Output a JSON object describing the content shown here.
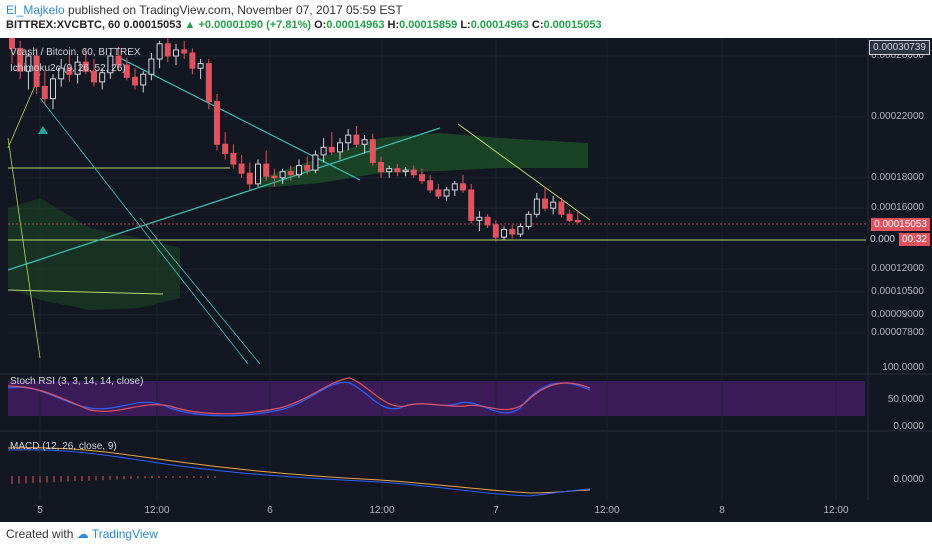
{
  "header": {
    "user": "El_Majkelo",
    "published": "published on TradingView.com, November 07, 2017 05:59 EST",
    "symbol": "BITTREX:XVCBTC, 60",
    "last": "0.00015053",
    "change": "▲ +0.00001090 (+7.81%)",
    "o_label": "O:",
    "o": "0.00014963",
    "h_label": "H:",
    "h": "0.00015859",
    "l_label": "L:",
    "l": "0.00014963",
    "c_label": "C:",
    "c": "0.00015053"
  },
  "footer": {
    "created": "Created with",
    "brand": "TradingView"
  },
  "chart": {
    "title": "Vcash / Bitcoin, 60, BITTREX",
    "indicator": "Ichimoku2c (9, 26, 52, 26)",
    "top_price": "0.00030739",
    "last_price": "0.00015053",
    "countdown_price": "0.000",
    "countdown": "00:32",
    "rsi_label": "Stoch RSI (3, 3, 14, 14, close)",
    "macd_label": "MACD (12, 26, close, 9)",
    "colors": {
      "bg": "#131722",
      "up": "#d1d4dc",
      "down": "#e0535e",
      "cloud": "#1f5a2a",
      "stoch_k": "#2962ff",
      "stoch_d": "#e0535e",
      "rsi_band": "#4a1f6b"
    }
  },
  "chart_data": {
    "type": "candlestick",
    "title": "Vcash / Bitcoin, 60, BITTREX",
    "y_ticks": [
      "0.00026000",
      "0.00022000",
      "0.00018000",
      "0.00016000",
      "0.00012000",
      "0.00010500",
      "0.00009000",
      "0.00007800"
    ],
    "y_tick_values": [
      0.00026,
      0.00022,
      0.00018,
      0.00016,
      0.00012,
      0.000105,
      9e-05,
      7.8e-05
    ],
    "x_ticks": [
      "5",
      "12:00",
      "6",
      "12:00",
      "7",
      "12:00",
      "8",
      "12:00"
    ],
    "rsi_ticks": [
      "100.0000",
      "50.0000",
      "0.0000"
    ],
    "macd_ticks": [
      "0.0000"
    ],
    "candles": [
      {
        "o": 0.000275,
        "h": 0.000285,
        "l": 0.000255,
        "c": 0.000265
      },
      {
        "o": 0.000265,
        "h": 0.00027,
        "l": 0.000245,
        "c": 0.00025
      },
      {
        "o": 0.00025,
        "h": 0.000262,
        "l": 0.000238,
        "c": 0.00026
      },
      {
        "o": 0.00026,
        "h": 0.000265,
        "l": 0.000235,
        "c": 0.00024
      },
      {
        "o": 0.00024,
        "h": 0.00025,
        "l": 0.000228,
        "c": 0.000232
      },
      {
        "o": 0.000232,
        "h": 0.000248,
        "l": 0.000225,
        "c": 0.000245
      },
      {
        "o": 0.000245,
        "h": 0.000258,
        "l": 0.00024,
        "c": 0.000252
      },
      {
        "o": 0.000252,
        "h": 0.000262,
        "l": 0.000243,
        "c": 0.000248
      },
      {
        "o": 0.000248,
        "h": 0.00026,
        "l": 0.000242,
        "c": 0.000256
      },
      {
        "o": 0.000256,
        "h": 0.000265,
        "l": 0.000248,
        "c": 0.00025
      },
      {
        "o": 0.00025,
        "h": 0.000258,
        "l": 0.00024,
        "c": 0.000243
      },
      {
        "o": 0.000243,
        "h": 0.000252,
        "l": 0.000238,
        "c": 0.000249
      },
      {
        "o": 0.000249,
        "h": 0.000262,
        "l": 0.000245,
        "c": 0.00026
      },
      {
        "o": 0.00026,
        "h": 0.000266,
        "l": 0.00025,
        "c": 0.000254
      },
      {
        "o": 0.000254,
        "h": 0.000259,
        "l": 0.000244,
        "c": 0.000246
      },
      {
        "o": 0.000246,
        "h": 0.000252,
        "l": 0.000238,
        "c": 0.000241
      },
      {
        "o": 0.000241,
        "h": 0.00025,
        "l": 0.000236,
        "c": 0.000248
      },
      {
        "o": 0.000248,
        "h": 0.000262,
        "l": 0.000244,
        "c": 0.000258
      },
      {
        "o": 0.000258,
        "h": 0.00027,
        "l": 0.000252,
        "c": 0.000268
      },
      {
        "o": 0.000268,
        "h": 0.000272,
        "l": 0.000256,
        "c": 0.00026
      },
      {
        "o": 0.00026,
        "h": 0.000268,
        "l": 0.000254,
        "c": 0.000264
      },
      {
        "o": 0.000264,
        "h": 0.00027,
        "l": 0.000258,
        "c": 0.000262
      },
      {
        "o": 0.000262,
        "h": 0.000265,
        "l": 0.000248,
        "c": 0.000252
      },
      {
        "o": 0.000252,
        "h": 0.000258,
        "l": 0.000245,
        "c": 0.000255
      },
      {
        "o": 0.000255,
        "h": 0.000258,
        "l": 0.000225,
        "c": 0.00023
      },
      {
        "o": 0.00023,
        "h": 0.000235,
        "l": 0.000198,
        "c": 0.000202
      },
      {
        "o": 0.000202,
        "h": 0.00021,
        "l": 0.000192,
        "c": 0.000196
      },
      {
        "o": 0.000196,
        "h": 0.000202,
        "l": 0.000186,
        "c": 0.000189
      },
      {
        "o": 0.000189,
        "h": 0.000195,
        "l": 0.00018,
        "c": 0.000183
      },
      {
        "o": 0.000183,
        "h": 0.00019,
        "l": 0.000172,
        "c": 0.000176
      },
      {
        "o": 0.000176,
        "h": 0.000192,
        "l": 0.000174,
        "c": 0.000189
      },
      {
        "o": 0.000189,
        "h": 0.000198,
        "l": 0.000178,
        "c": 0.000181
      },
      {
        "o": 0.000181,
        "h": 0.000186,
        "l": 0.000174,
        "c": 0.00018
      },
      {
        "o": 0.00018,
        "h": 0.000186,
        "l": 0.000176,
        "c": 0.000184
      },
      {
        "o": 0.000184,
        "h": 0.000188,
        "l": 0.000178,
        "c": 0.000182
      },
      {
        "o": 0.000182,
        "h": 0.000192,
        "l": 0.00018,
        "c": 0.000188
      },
      {
        "o": 0.000188,
        "h": 0.000194,
        "l": 0.000182,
        "c": 0.000185
      },
      {
        "o": 0.000185,
        "h": 0.000198,
        "l": 0.000183,
        "c": 0.000195
      },
      {
        "o": 0.000195,
        "h": 0.000206,
        "l": 0.00019,
        "c": 0.0002
      },
      {
        "o": 0.0002,
        "h": 0.00021,
        "l": 0.000195,
        "c": 0.000197
      },
      {
        "o": 0.000197,
        "h": 0.000206,
        "l": 0.000192,
        "c": 0.000203
      },
      {
        "o": 0.000203,
        "h": 0.000212,
        "l": 0.000198,
        "c": 0.000208
      },
      {
        "o": 0.000208,
        "h": 0.000214,
        "l": 0.0002,
        "c": 0.000202
      },
      {
        "o": 0.000202,
        "h": 0.000208,
        "l": 0.000196,
        "c": 0.000205
      },
      {
        "o": 0.000205,
        "h": 0.000209,
        "l": 0.000188,
        "c": 0.00019
      },
      {
        "o": 0.00019,
        "h": 0.000194,
        "l": 0.00018,
        "c": 0.000184
      },
      {
        "o": 0.000184,
        "h": 0.000188,
        "l": 0.00018,
        "c": 0.000186
      },
      {
        "o": 0.000186,
        "h": 0.000189,
        "l": 0.000181,
        "c": 0.000184
      },
      {
        "o": 0.000184,
        "h": 0.000187,
        "l": 0.000181,
        "c": 0.000185
      },
      {
        "o": 0.000185,
        "h": 0.000188,
        "l": 0.00018,
        "c": 0.000182
      },
      {
        "o": 0.000182,
        "h": 0.000186,
        "l": 0.000176,
        "c": 0.000178
      },
      {
        "o": 0.000178,
        "h": 0.000182,
        "l": 0.00017,
        "c": 0.000172
      },
      {
        "o": 0.000172,
        "h": 0.000176,
        "l": 0.000166,
        "c": 0.000168
      },
      {
        "o": 0.000168,
        "h": 0.000174,
        "l": 0.000165,
        "c": 0.000172
      },
      {
        "o": 0.000172,
        "h": 0.000178,
        "l": 0.000168,
        "c": 0.000176
      },
      {
        "o": 0.000176,
        "h": 0.000182,
        "l": 0.00017,
        "c": 0.000172
      },
      {
        "o": 0.000172,
        "h": 0.000176,
        "l": 0.00015,
        "c": 0.000152
      },
      {
        "o": 0.000152,
        "h": 0.000158,
        "l": 0.000145,
        "c": 0.000154
      },
      {
        "o": 0.000154,
        "h": 0.000156,
        "l": 0.000147,
        "c": 0.000149
      },
      {
        "o": 0.000149,
        "h": 0.000152,
        "l": 0.000138,
        "c": 0.000141
      },
      {
        "o": 0.000141,
        "h": 0.000148,
        "l": 0.000139,
        "c": 0.000146
      },
      {
        "o": 0.000146,
        "h": 0.000149,
        "l": 0.00014,
        "c": 0.000143
      },
      {
        "o": 0.000143,
        "h": 0.00015,
        "l": 0.000141,
        "c": 0.000148
      },
      {
        "o": 0.000148,
        "h": 0.000158,
        "l": 0.000146,
        "c": 0.000156
      },
      {
        "o": 0.000156,
        "h": 0.00017,
        "l": 0.000154,
        "c": 0.000166
      },
      {
        "o": 0.000166,
        "h": 0.000174,
        "l": 0.000158,
        "c": 0.00016
      },
      {
        "o": 0.00016,
        "h": 0.000168,
        "l": 0.000156,
        "c": 0.000164
      },
      {
        "o": 0.000164,
        "h": 0.000167,
        "l": 0.000154,
        "c": 0.000156
      },
      {
        "o": 0.000156,
        "h": 0.000159,
        "l": 0.000151,
        "c": 0.000152
      },
      {
        "o": 0.000152,
        "h": 0.000158,
        "l": 0.00015,
        "c": 0.000151
      }
    ]
  }
}
